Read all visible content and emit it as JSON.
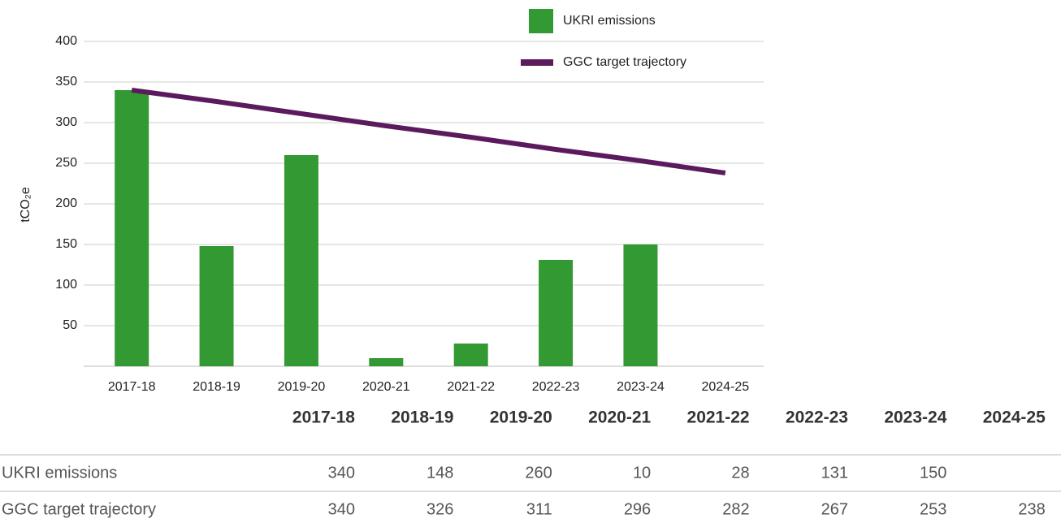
{
  "chart_data": {
    "type": "bar",
    "y_label": "tCO₂e",
    "categories": [
      "2017-18",
      "2018-19",
      "2019-20",
      "2020-21",
      "2021-22",
      "2022-23",
      "2023-24",
      "2024-25"
    ],
    "series": [
      {
        "name": "UKRI emissions",
        "type": "bar",
        "color": "#339933",
        "values": [
          340,
          148,
          260,
          10,
          28,
          131,
          150,
          null
        ]
      },
      {
        "name": "GGC target trajectory",
        "type": "line",
        "color": "#5c1a5e",
        "values": [
          340,
          326,
          311,
          296,
          282,
          267,
          253,
          238
        ]
      }
    ],
    "ylim": [
      0,
      400
    ],
    "yticks": [
      50,
      100,
      150,
      200,
      250,
      300,
      350,
      400
    ],
    "grid": true,
    "legend": "top-right"
  }
}
